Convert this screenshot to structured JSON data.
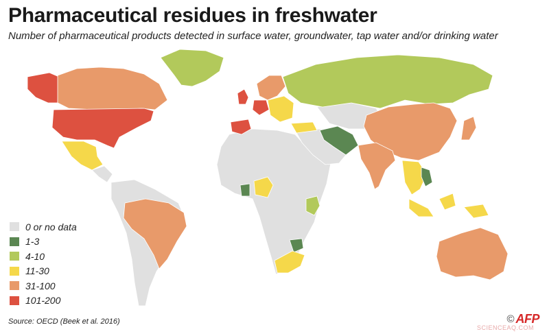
{
  "title": "Pharmaceutical residues in freshwater",
  "subtitle": "Number of pharmaceutical products detected in surface water, groundwater, tap water and/or drinking water",
  "legend": {
    "items": [
      {
        "label": "0 or no data",
        "color": "#e0e0e0"
      },
      {
        "label": "1-3",
        "color": "#5b8752"
      },
      {
        "label": "4-10",
        "color": "#b2c95b"
      },
      {
        "label": "11-30",
        "color": "#f5d84a"
      },
      {
        "label": "31-100",
        "color": "#e89a6a"
      },
      {
        "label": "101-200",
        "color": "#dd5140"
      }
    ]
  },
  "source": "Source: OECD (Beek et al. 2016)",
  "credit": {
    "copyright": "©",
    "logo": "AFP"
  },
  "watermark": "SCIENCEAQ.COM",
  "regions": [
    {
      "name": "Canada",
      "category": "31-100"
    },
    {
      "name": "USA",
      "category": "101-200"
    },
    {
      "name": "Alaska",
      "category": "101-200"
    },
    {
      "name": "Greenland",
      "category": "4-10"
    },
    {
      "name": "Mexico",
      "category": "11-30"
    },
    {
      "name": "Central America",
      "category": "0 or no data"
    },
    {
      "name": "Brazil",
      "category": "31-100"
    },
    {
      "name": "Rest of South America",
      "category": "0 or no data"
    },
    {
      "name": "Russia",
      "category": "4-10"
    },
    {
      "name": "United Kingdom",
      "category": "101-200"
    },
    {
      "name": "Spain",
      "category": "101-200"
    },
    {
      "name": "Germany",
      "category": "101-200"
    },
    {
      "name": "Scandinavia",
      "category": "31-100"
    },
    {
      "name": "Eastern Europe",
      "category": "11-30"
    },
    {
      "name": "Turkey",
      "category": "11-30"
    },
    {
      "name": "Iran",
      "category": "1-3"
    },
    {
      "name": "China",
      "category": "31-100"
    },
    {
      "name": "India",
      "category": "31-100"
    },
    {
      "name": "Japan",
      "category": "31-100"
    },
    {
      "name": "Southeast Asia",
      "category": "11-30"
    },
    {
      "name": "Vietnam",
      "category": "1-3"
    },
    {
      "name": "Indonesia",
      "category": "11-30"
    },
    {
      "name": "Australia",
      "category": "31-100"
    },
    {
      "name": "Nigeria",
      "category": "11-30"
    },
    {
      "name": "Ghana",
      "category": "1-3"
    },
    {
      "name": "Kenya",
      "category": "4-10"
    },
    {
      "name": "Zimbabwe",
      "category": "1-3"
    },
    {
      "name": "South Africa",
      "category": "11-30"
    },
    {
      "name": "Rest of Africa",
      "category": "0 or no data"
    },
    {
      "name": "Middle East",
      "category": "0 or no data"
    },
    {
      "name": "Central Asia",
      "category": "0 or no data"
    }
  ]
}
